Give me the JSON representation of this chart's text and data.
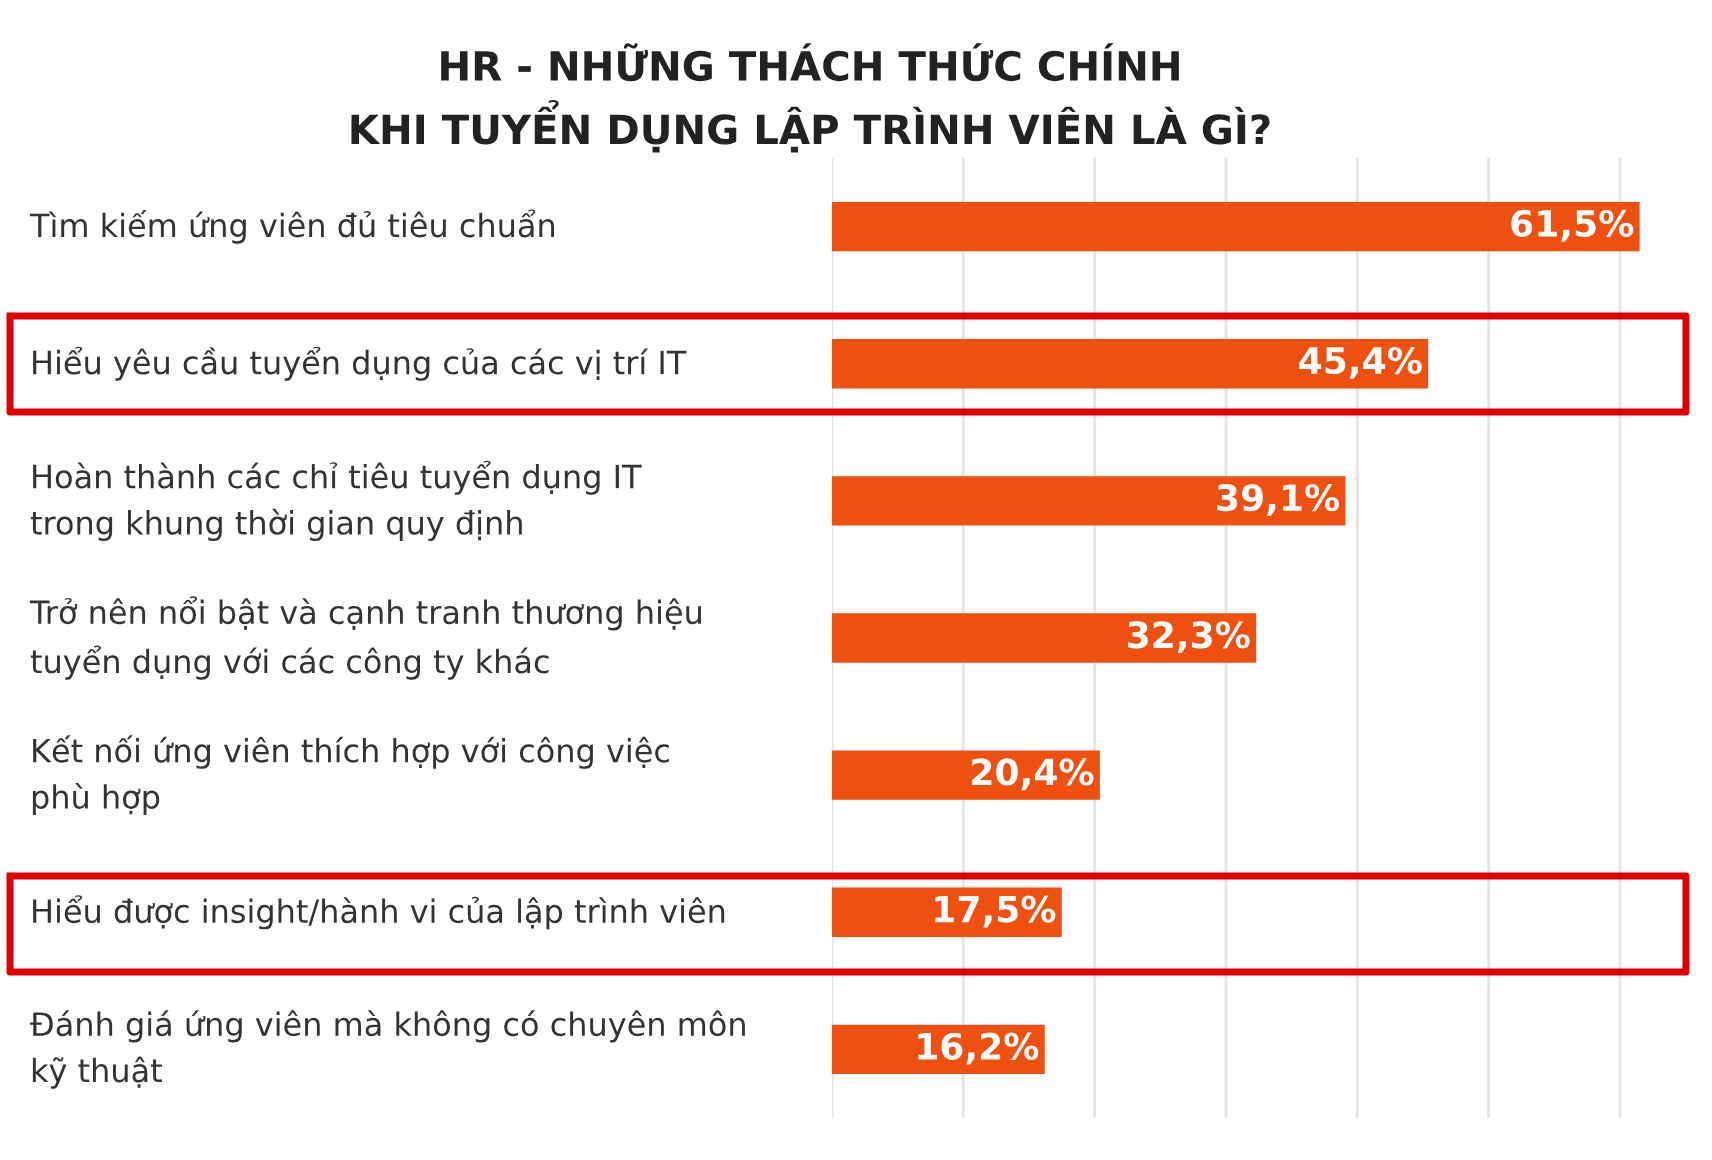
{
  "chart_data": {
    "type": "bar",
    "orientation": "horizontal",
    "title": "HR - NHỮNG THÁCH THỨC CHÍNH\nKHI TUYỂN DỤNG LẬP TRÌNH VIÊN LÀ GÌ?",
    "categories": [
      "Tìm kiếm ứng viên đủ tiêu chuẩn",
      "Hiểu yêu cầu tuyển dụng của các vị trí IT",
      "Hoàn thành các chỉ tiêu tuyển dụng IT\ntrong khung thời gian quy định",
      "Trở nên nổi bật và cạnh tranh thương hiệu\ntuyển dụng với các công ty khác",
      "Kết nối ứng viên thích hợp với công việc\nphù hợp",
      "Hiểu được insight/hành vi của lập trình viên",
      "Đánh giá ứng viên mà không có chuyên môn\nkỹ thuật"
    ],
    "values": [
      61.5,
      45.4,
      39.1,
      32.3,
      20.4,
      17.5,
      16.2
    ],
    "value_labels": [
      "61,5%",
      "45,4%",
      "39,1%",
      "32,3%",
      "20,4%",
      "17,5%",
      "16,2%"
    ],
    "color": "#f0500f",
    "xticks": [
      {
        "value": 0,
        "label": null
      },
      {
        "value": 10,
        "label": null
      },
      {
        "value": 20,
        "label": null
      },
      {
        "value": 30,
        "label": null
      },
      {
        "value": 40,
        "label": null
      },
      {
        "value": 50,
        "label": null
      },
      {
        "value": 60,
        "label": null
      }
    ],
    "grid": "x"
  }
}
